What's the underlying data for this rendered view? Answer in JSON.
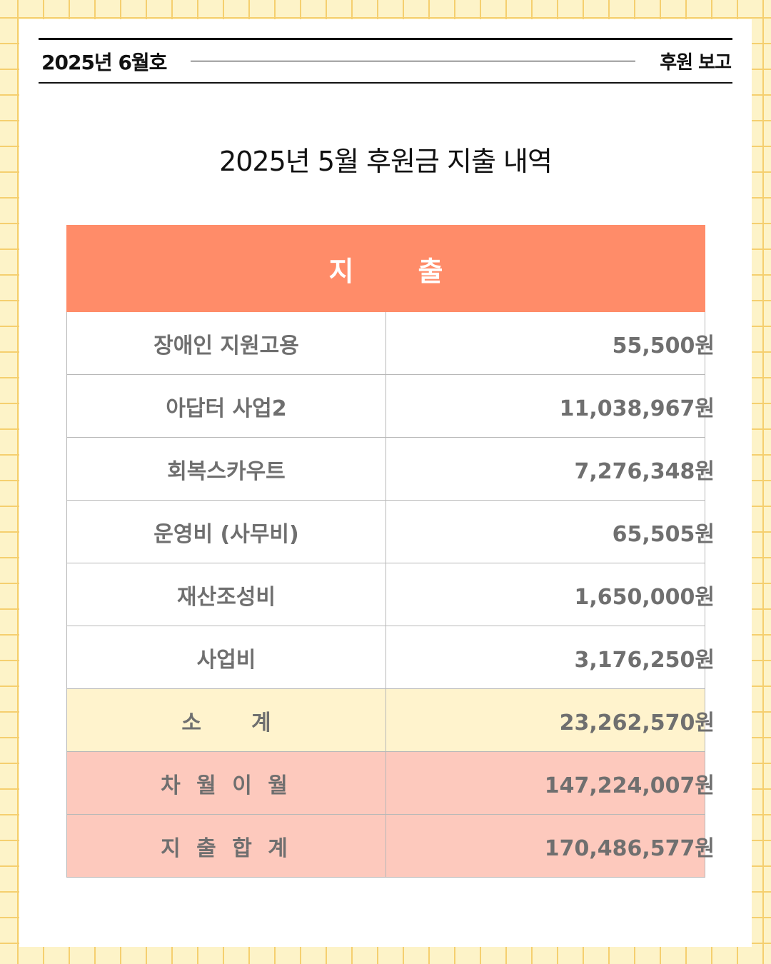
{
  "header": {
    "issue": "2025년 6월호",
    "section": "후원 보고"
  },
  "title": "2025년 5월 후원금 지출 내역",
  "table": {
    "header_left": "지",
    "header_right": "출",
    "rows": [
      {
        "label": "장애인 지원고용",
        "amount": "55,500원"
      },
      {
        "label": "아답터 사업2",
        "amount": "11,038,967원"
      },
      {
        "label": "회복스카우트",
        "amount": "7,276,348원"
      },
      {
        "label": "운영비 (사무비)",
        "amount": "65,505원"
      },
      {
        "label": "재산조성비",
        "amount": "1,650,000원"
      },
      {
        "label": "사업비",
        "amount": "3,176,250원"
      }
    ],
    "subtotal": {
      "label_a": "소",
      "label_b": "계",
      "amount": "23,262,570원"
    },
    "carryover": {
      "label": "차 월 이 월",
      "amount": "147,224,007원"
    },
    "total": {
      "label": "지 출 합 계",
      "amount": "170,486,577원"
    }
  },
  "colors": {
    "header_fill": "#ff8c69",
    "subtotal_fill": "#fff3cd",
    "total_fill": "#fdc9bd",
    "grid_line": "#f5cf6f"
  }
}
